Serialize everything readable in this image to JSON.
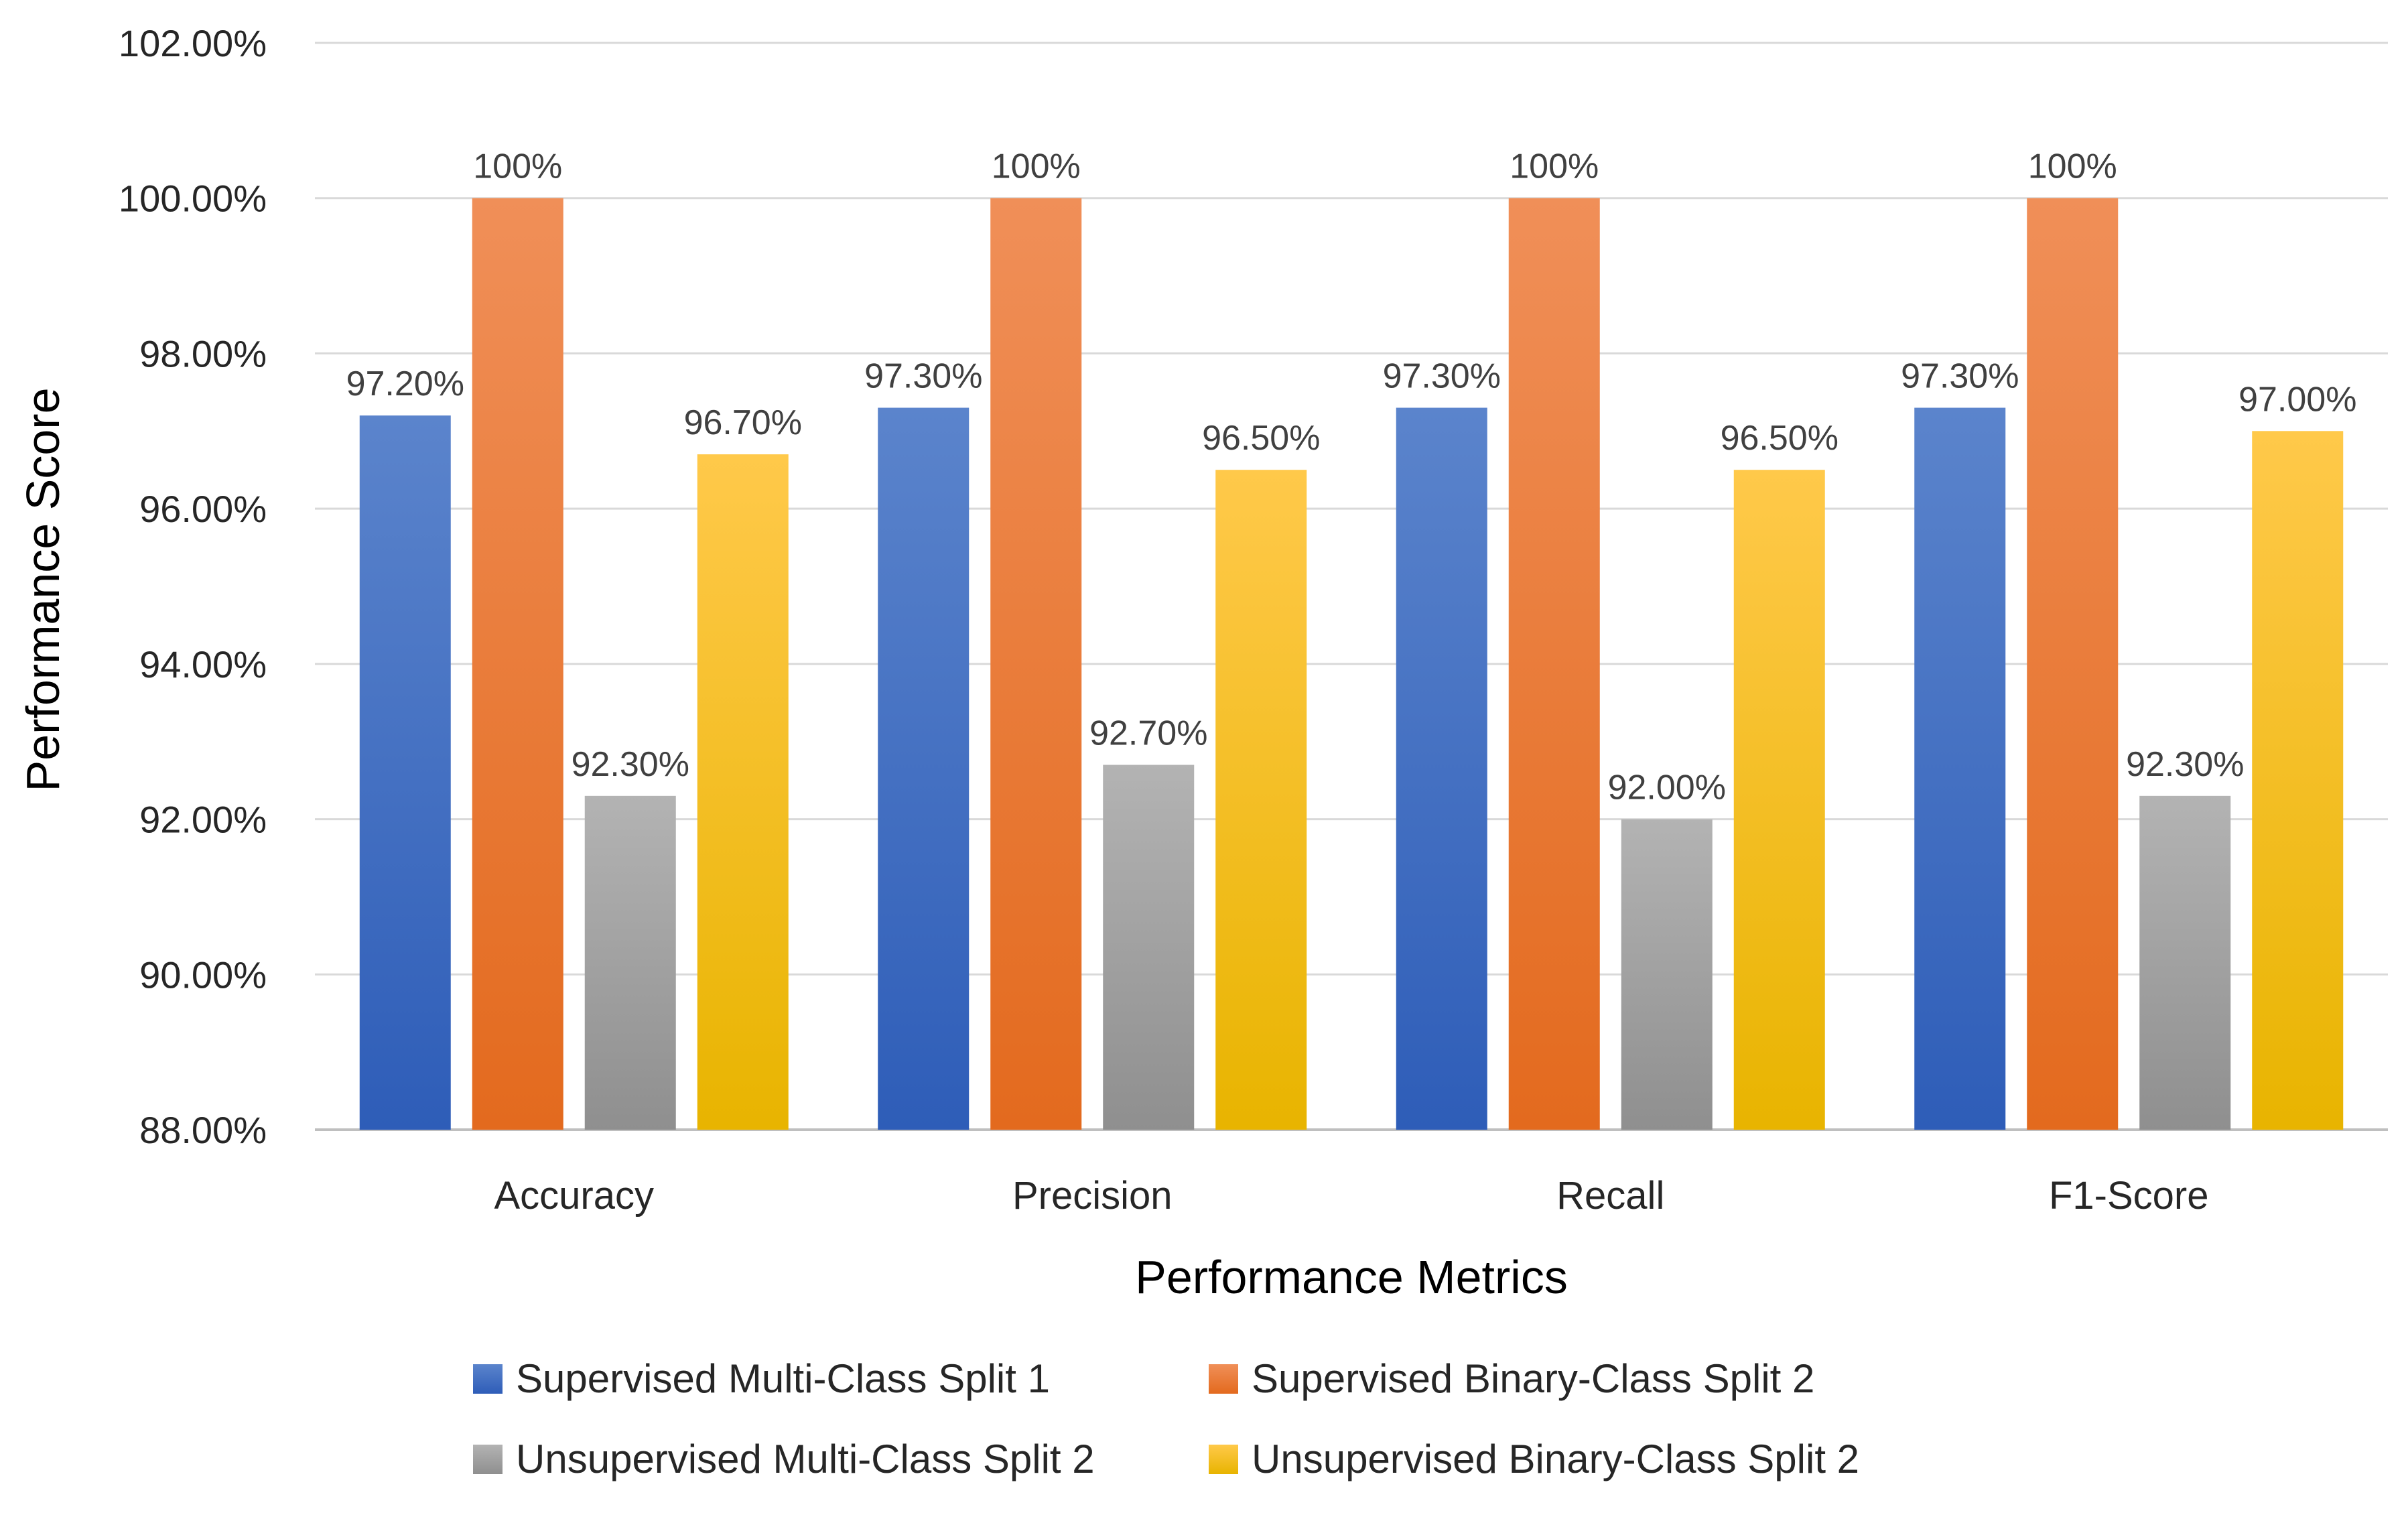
{
  "chart_data": {
    "type": "bar",
    "title": "",
    "xlabel": "Performance Metrics",
    "ylabel": "Performance Score",
    "ylim": [
      88,
      102
    ],
    "y_ticks": [
      88,
      90,
      92,
      94,
      96,
      98,
      100,
      102
    ],
    "y_tick_labels": [
      "88.00%",
      "90.00%",
      "92.00%",
      "94.00%",
      "96.00%",
      "98.00%",
      "100.00%",
      "102.00%"
    ],
    "grid": true,
    "legend_position": "bottom",
    "categories": [
      "Accuracy",
      "Precision",
      "Recall",
      "F1-Score"
    ],
    "series": [
      {
        "name": "Supervised Multi-Class Split 1",
        "values": [
          97.2,
          97.3,
          97.3,
          97.3
        ],
        "labels": [
          "97.20%",
          "97.30%",
          "97.30%",
          "97.30%"
        ],
        "color_top": "#5B84CC",
        "color_bottom": "#2E5DB8"
      },
      {
        "name": "Supervised Binary-Class Split 2",
        "values": [
          100,
          100,
          100,
          100
        ],
        "labels": [
          "100%",
          "100%",
          "100%",
          "100%"
        ],
        "color_top": "#F08F58",
        "color_bottom": "#E36A1E"
      },
      {
        "name": "Unsupervised Multi-Class Split 2",
        "values": [
          92.3,
          92.7,
          92.0,
          92.3
        ],
        "labels": [
          "92.30%",
          "92.70%",
          "92.00%",
          "92.30%"
        ],
        "color_top": "#B3B3B3",
        "color_bottom": "#8F8F8F"
      },
      {
        "name": "Unsupervised Binary-Class Split 2",
        "values": [
          96.7,
          96.5,
          96.5,
          97.0
        ],
        "labels": [
          "96.70%",
          "96.50%",
          "96.50%",
          "97.00%"
        ],
        "color_top": "#FFC94A",
        "color_bottom": "#E8B400"
      }
    ]
  }
}
